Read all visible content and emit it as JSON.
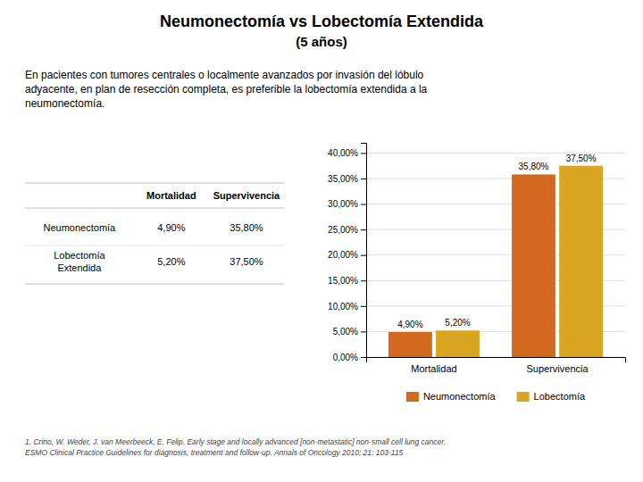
{
  "chart_data": {
    "type": "bar",
    "title": "Neumonectomía vs Lobectomía Extendida\n(5 años)",
    "subtitle": "En pacientes con tumores centrales o localmente avanzados por invasión del lóbulo\nadyacente, en plan de resección completa, es preferible la lobectomía extendida a la\nneumonectomía.",
    "categories": [
      "Mortalidad",
      "Supervivencia"
    ],
    "series": [
      {
        "name": "Neumonectomía",
        "color": "#D2691E",
        "values": [
          4.9,
          35.8
        ],
        "value_labels": [
          "4,90%",
          "35,80%"
        ]
      },
      {
        "name": "Lobectomía",
        "color": "#DAA520",
        "values": [
          5.2,
          37.5
        ],
        "value_labels": [
          "5,20%",
          "37,50%"
        ]
      }
    ],
    "ylim": [
      0,
      42
    ],
    "yticks": [
      {
        "value": 0,
        "label": "0,00%"
      },
      {
        "value": 5,
        "label": "5,00%"
      },
      {
        "value": 10,
        "label": "10,00%"
      },
      {
        "value": 15,
        "label": "15,00%"
      },
      {
        "value": 20,
        "label": "20,00%"
      },
      {
        "value": 25,
        "label": "25,00%"
      },
      {
        "value": 30,
        "label": "30,00%"
      },
      {
        "value": 35,
        "label": "35,00%"
      },
      {
        "value": 40,
        "label": "40,00%"
      }
    ],
    "grid": true,
    "legend": "bottom",
    "data_labels": true,
    "table": {
      "columns": [
        "Mortalidad",
        "Supervivencia"
      ],
      "rows": [
        [
          "Neumonectomía",
          "4,90%",
          "35,80%"
        ],
        [
          "Lobectomía\nExtendida",
          "5,20%",
          "37,50%"
        ]
      ]
    },
    "annotations": [
      "1. Crino, W. Weder, J. van Meerbeeck, E. Felip.  Early stage and locally advanced [non-metastatic] non-small cell lung cancer.\nESMO Clinical Practice Guidelines for diagnosis, treatment and follow-up. Annals of Oncology 2010; 21: 103-115"
    ]
  }
}
